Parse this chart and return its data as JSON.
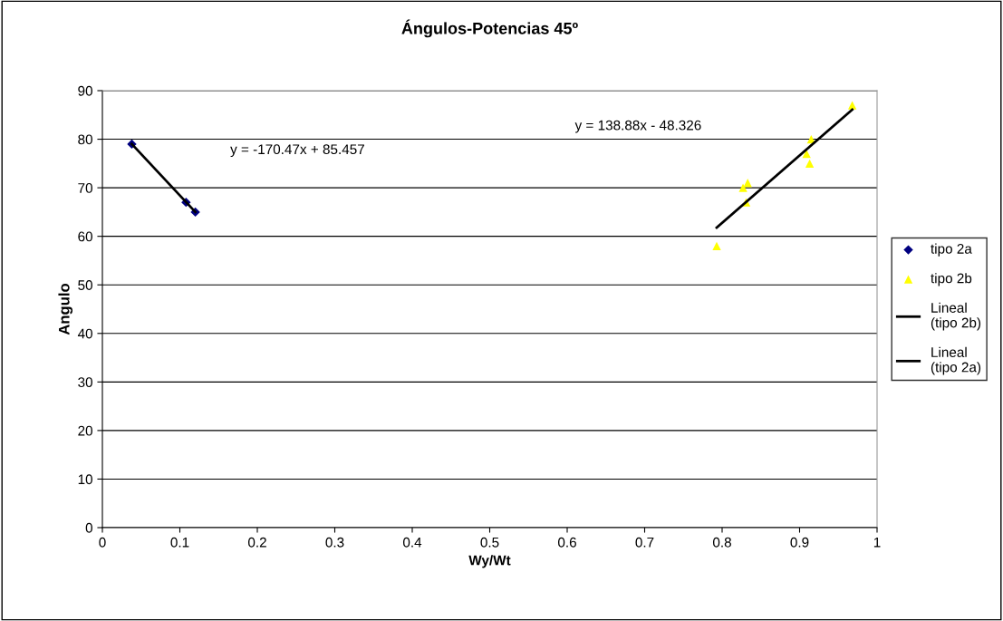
{
  "chart_data": {
    "type": "scatter",
    "title": "Ángulos-Potencias 45º",
    "xlabel": "Wy/Wt",
    "ylabel": "Angulo",
    "series": [
      {
        "name": "tipo 2a",
        "color": "#000080",
        "marker": "diamond",
        "x": [
          0.038,
          0.108,
          0.12
        ],
        "values": [
          79,
          67,
          65
        ]
      },
      {
        "name": "tipo 2b",
        "color": "#ffff00",
        "marker": "triangle",
        "x": [
          0.793,
          0.827,
          0.833,
          0.831,
          0.909,
          0.913,
          0.915,
          0.968
        ],
        "values": [
          58,
          70,
          71,
          67,
          77,
          75,
          80,
          87
        ]
      },
      {
        "name": "Lineal (tipo 2b)",
        "type": "line",
        "color": "#000000",
        "marker": "none",
        "x": [
          0.793,
          0.968
        ],
        "values": [
          61.8,
          86.1
        ]
      },
      {
        "name": "Lineal (tipo 2a)",
        "type": "line",
        "color": "#000000",
        "marker": "none",
        "x": [
          0.038,
          0.12
        ],
        "values": [
          79.0,
          65.0
        ]
      }
    ],
    "annotations": [
      "y = -170.47x + 85.457",
      "y = 138.88x - 48.326"
    ],
    "xlim": [
      0,
      1
    ],
    "xticks": [
      0,
      0.1,
      0.2,
      0.3,
      0.4,
      0.5,
      0.6,
      0.7,
      0.8,
      0.9,
      1
    ],
    "ylim": [
      0,
      90
    ],
    "yticks": [
      0,
      10,
      20,
      30,
      40,
      50,
      60,
      70,
      80,
      90
    ],
    "grid": "y",
    "legend": "right"
  }
}
